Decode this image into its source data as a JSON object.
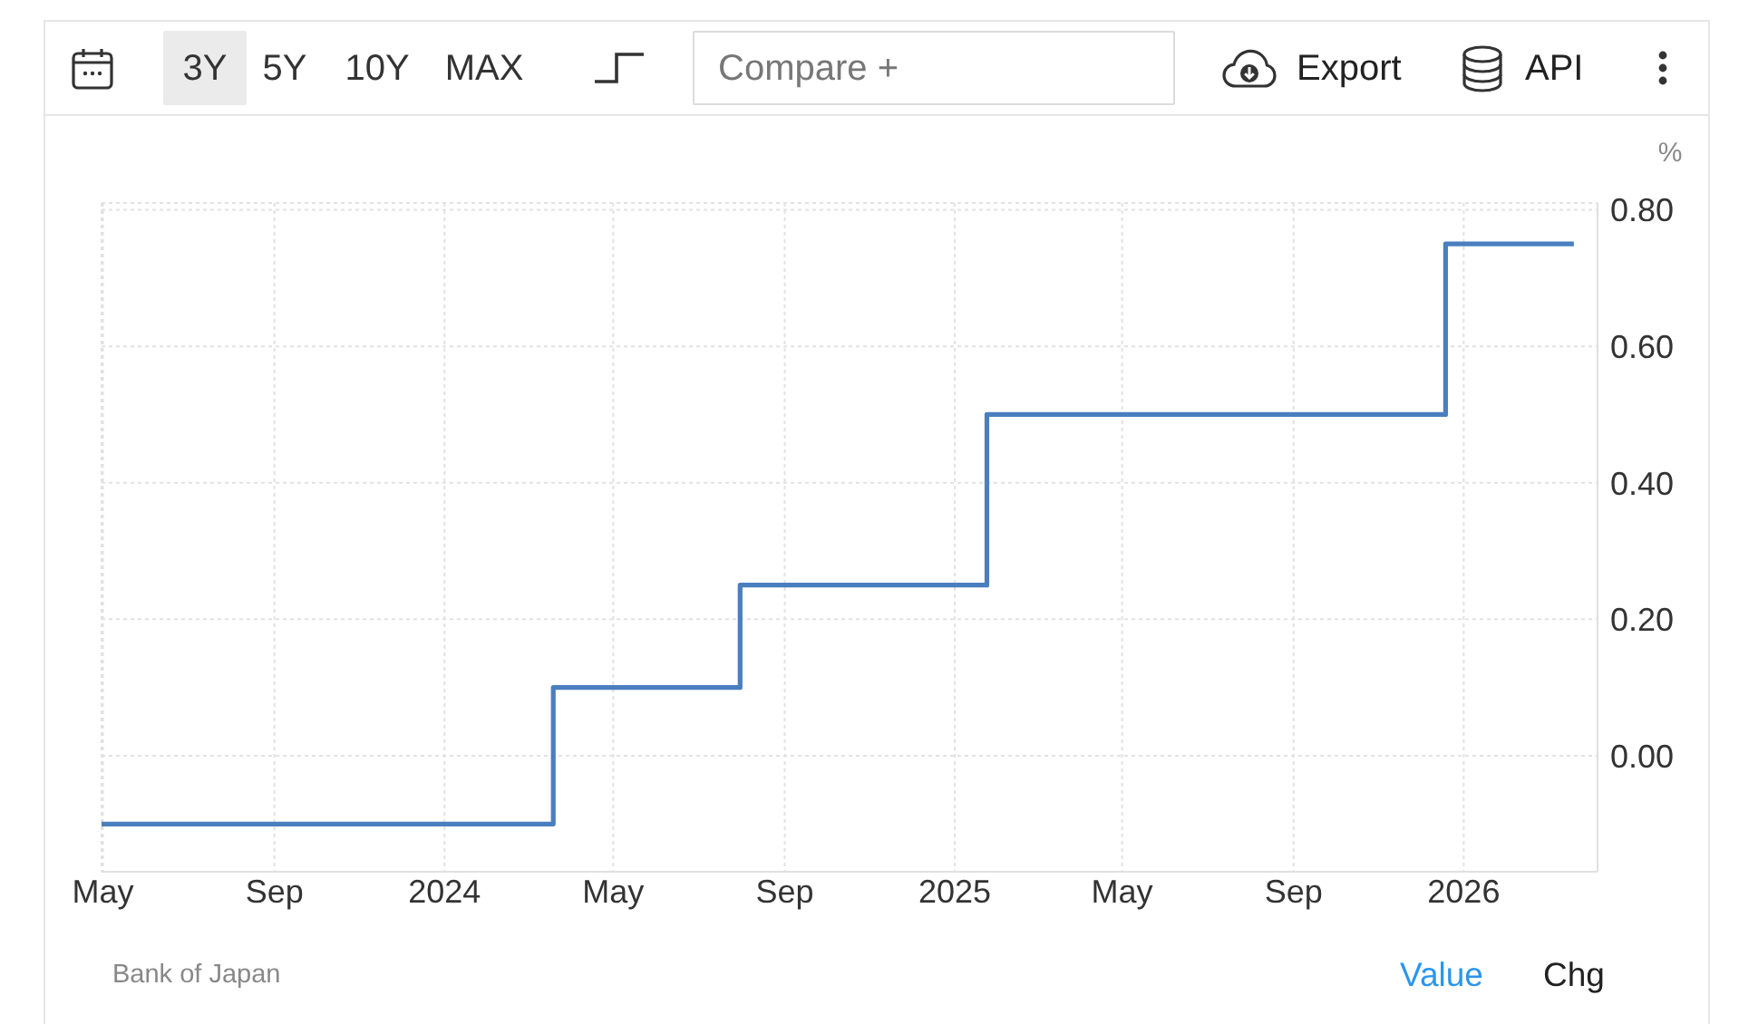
{
  "chart_data": {
    "type": "step",
    "x": [
      "2023-04-30",
      "2024-03-19",
      "2024-07-31",
      "2025-01-24",
      "2025-12-19",
      "2026-03-21"
    ],
    "values": [
      -0.1,
      0.1,
      0.25,
      0.5,
      0.75,
      0.75
    ],
    "color": "#4a7fbf",
    "xlim": [
      "2023-04-30",
      "2026-04-07"
    ],
    "xticks": [
      {
        "value": "2023-05-01",
        "label": "May"
      },
      {
        "value": "2023-09-01",
        "label": "Sep"
      },
      {
        "value": "2024-01-01",
        "label": "2024"
      },
      {
        "value": "2024-05-01",
        "label": "May"
      },
      {
        "value": "2024-09-01",
        "label": "Sep"
      },
      {
        "value": "2025-01-01",
        "label": "2025"
      },
      {
        "value": "2025-05-01",
        "label": "May"
      },
      {
        "value": "2025-09-01",
        "label": "Sep"
      },
      {
        "value": "2026-01-01",
        "label": "2026"
      }
    ],
    "ylim": [
      -0.17,
      0.81
    ],
    "yticks": [
      {
        "value": 0,
        "label": "0.00"
      },
      {
        "value": 0.2,
        "label": "0.20"
      },
      {
        "value": 0.4,
        "label": "0.40"
      },
      {
        "value": 0.6,
        "label": "0.60"
      },
      {
        "value": 0.8,
        "label": "0.80"
      }
    ],
    "ylabel": "%",
    "grid": true,
    "annotations": [
      "3Y",
      "5Y",
      "10Y",
      "MAX",
      "Compare +",
      "Export",
      "API",
      "Bank of Japan",
      "Value",
      "Chg"
    ]
  }
}
